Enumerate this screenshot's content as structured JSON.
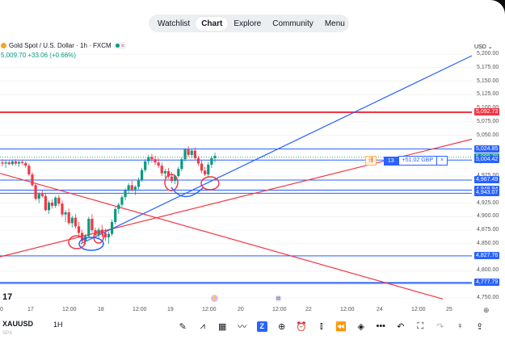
{
  "nav": {
    "tabs": [
      {
        "label": "Watchlist",
        "active": false
      },
      {
        "label": "Chart",
        "active": true
      },
      {
        "label": "Explore",
        "active": false
      },
      {
        "label": "Community",
        "active": false
      },
      {
        "label": "Menu",
        "active": false
      }
    ]
  },
  "symbol": {
    "title": "Gold Spot / U.S. Dollar · 1h · FXCM",
    "price_change": "5,009.70 +33.06 (+0.66%)",
    "ticker": "XAUUSD",
    "interval": "1H",
    "sub_label": "SPX",
    "currency": "USD"
  },
  "price_axis": {
    "ticks": [
      "5,200.00",
      "5,175.00",
      "5,150.00",
      "5,125.00",
      "5,100.00",
      "5,075.00",
      "5,050.00",
      "5,025.00",
      "5,000.00",
      "4,975.00",
      "4,950.00",
      "4,925.00",
      "4,900.00",
      "4,875.00",
      "4,850.00",
      "4,825.00",
      "4,800.00",
      "4,775.00",
      "4,750.00"
    ]
  },
  "price_tags": [
    {
      "label": "5,092.73",
      "color": "#f23645",
      "value": 5092.73
    },
    {
      "label": "5,024.85",
      "color": "#2962ff",
      "value": 5024.85
    },
    {
      "label": "5,009.70",
      "color": "#089981",
      "value": 5009.7
    },
    {
      "label": "5,004.42",
      "color": "#2962ff",
      "value": 5004.42
    },
    {
      "label": "4,967.49",
      "color": "#2962ff",
      "value": 4967.49
    },
    {
      "label": "4,948.94",
      "color": "#2962ff",
      "value": 4948.94
    },
    {
      "label": "4,943.07",
      "color": "#2962ff",
      "value": 4943.07
    },
    {
      "label": "4,827.76",
      "color": "#2962ff",
      "value": 4827.76
    },
    {
      "label": "4,777.79",
      "color": "#2962ff",
      "value": 4777.79
    }
  ],
  "time_axis": {
    "ticks": [
      "0",
      "17",
      "12:00",
      "18",
      "12:00",
      "19",
      "12:00",
      "20",
      "12:00",
      "22",
      "12:00",
      "24",
      "12:00",
      "25"
    ]
  },
  "order": {
    "quantity": "13",
    "pl": "+51.02 GBP",
    "close": "×"
  },
  "toolbar": {
    "icons": [
      "pencil-icon",
      "indicators-icon",
      "grid-icon",
      "drawing-icon",
      "z-icon",
      "plus-icon",
      "alarm-icon",
      "candles-icon",
      "replay-icon",
      "layers-icon",
      "more-icon",
      "undo-icon",
      "fullscreen-icon",
      "redo-icon",
      "lightbulb-icon",
      "share-icon"
    ],
    "z_label": "Z",
    "more_label": "•••"
  },
  "brand": {
    "logo": "17"
  },
  "colors": {
    "up": "#089981",
    "down": "#f23645",
    "accent": "#2962ff",
    "red_line": "#f23645",
    "blue_line": "#2962ff"
  },
  "chart_data": {
    "type": "candlestick",
    "series": [
      {
        "name": "XAUUSD",
        "ohlc": [
          [
            5000,
            5006,
            4993,
            4998
          ],
          [
            4998,
            5004,
            4990,
            5000
          ],
          [
            5000,
            5003,
            4995,
            4997
          ],
          [
            4997,
            5005,
            4994,
            5002
          ],
          [
            5002,
            5006,
            4995,
            4998
          ],
          [
            4998,
            5003,
            4992,
            5001
          ],
          [
            5001,
            5005,
            4996,
            4999
          ],
          [
            4999,
            5002,
            4990,
            4994
          ],
          [
            4994,
            4998,
            4975,
            4978
          ],
          [
            4978,
            4982,
            4955,
            4958
          ],
          [
            4958,
            4961,
            4930,
            4933
          ],
          [
            4933,
            4945,
            4925,
            4942
          ],
          [
            4942,
            4948,
            4935,
            4938
          ],
          [
            4938,
            4944,
            4910,
            4912
          ],
          [
            4912,
            4930,
            4905,
            4926
          ],
          [
            4926,
            4932,
            4915,
            4920
          ],
          [
            4920,
            4938,
            4916,
            4935
          ],
          [
            4935,
            4940,
            4920,
            4924
          ],
          [
            4924,
            4930,
            4900,
            4904
          ],
          [
            4904,
            4912,
            4890,
            4908
          ],
          [
            4908,
            4915,
            4885,
            4888
          ],
          [
            4888,
            4902,
            4880,
            4898
          ],
          [
            4898,
            4905,
            4878,
            4882
          ],
          [
            4882,
            4890,
            4865,
            4870
          ],
          [
            4870,
            4876,
            4850,
            4855
          ],
          [
            4855,
            4868,
            4848,
            4864
          ],
          [
            4864,
            4900,
            4860,
            4896
          ],
          [
            4896,
            4905,
            4870,
            4875
          ],
          [
            4875,
            4880,
            4860,
            4866
          ],
          [
            4866,
            4880,
            4858,
            4876
          ],
          [
            4876,
            4885,
            4862,
            4870
          ],
          [
            4870,
            4878,
            4855,
            4862
          ],
          [
            4862,
            4872,
            4850,
            4868
          ],
          [
            4868,
            4895,
            4864,
            4890
          ],
          [
            4890,
            4918,
            4886,
            4914
          ],
          [
            4914,
            4926,
            4905,
            4922
          ],
          [
            4922,
            4940,
            4918,
            4936
          ],
          [
            4936,
            4952,
            4930,
            4948
          ],
          [
            4948,
            4962,
            4942,
            4958
          ],
          [
            4958,
            4966,
            4946,
            4950
          ],
          [
            4950,
            4958,
            4940,
            4955
          ],
          [
            4955,
            4972,
            4950,
            4968
          ],
          [
            4968,
            4990,
            4964,
            4986
          ],
          [
            4986,
            5006,
            4982,
            5002
          ],
          [
            5002,
            5014,
            4995,
            5010
          ],
          [
            5010,
            5016,
            5000,
            5006
          ],
          [
            5006,
            5012,
            4995,
            5000
          ],
          [
            5000,
            5008,
            4990,
            4994
          ],
          [
            4994,
            5000,
            4975,
            4980
          ],
          [
            4980,
            4988,
            4972,
            4984
          ],
          [
            4984,
            4990,
            4970,
            4974
          ],
          [
            4974,
            4982,
            4962,
            4966
          ],
          [
            4966,
            4978,
            4960,
            4975
          ],
          [
            4975,
            4992,
            4972,
            4988
          ],
          [
            4988,
            5010,
            4984,
            5006
          ],
          [
            5006,
            5026,
            5002,
            5024
          ],
          [
            5024,
            5030,
            5010,
            5014
          ],
          [
            5014,
            5026,
            5008,
            5022
          ],
          [
            5022,
            5028,
            5004,
            5008
          ],
          [
            5008,
            5012,
            4994,
            4998
          ],
          [
            4998,
            5004,
            4980,
            4985
          ],
          [
            4985,
            4992,
            4975,
            4978
          ],
          [
            4978,
            5000,
            4974,
            4996
          ],
          [
            4996,
            5012,
            4990,
            5008
          ],
          [
            5008,
            5018,
            5000,
            5012
          ]
        ]
      }
    ],
    "ylim": [
      4750,
      5200
    ]
  }
}
